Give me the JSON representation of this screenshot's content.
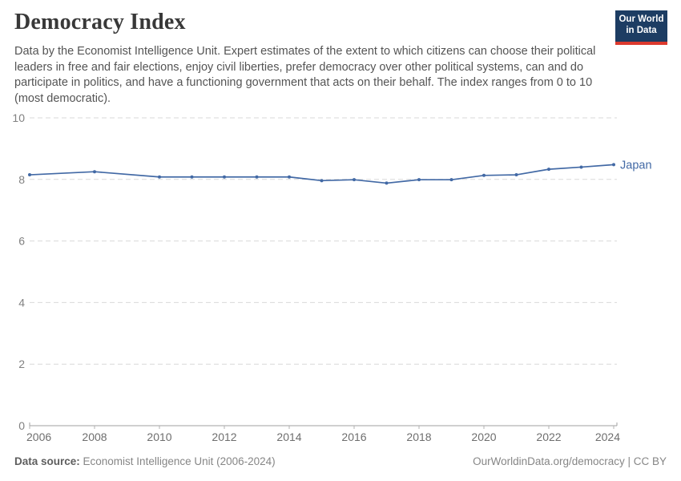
{
  "header": {
    "title": "Democracy Index",
    "subtitle": "Data by the Economist Intelligence Unit. Expert estimates of the extent to which citizens can choose their political leaders in free and fair elections, enjoy civil liberties, prefer democracy over other political systems, can and do participate in politics, and have a functioning government that acts on their behalf. The index ranges from 0 to 10 (most democratic)."
  },
  "logo": {
    "line1": "Our World",
    "line2": "in Data",
    "bg_color": "#1d3d63",
    "accent_color": "#dc3a2e"
  },
  "chart_data": {
    "type": "line",
    "title": "Democracy Index",
    "xlabel": "",
    "ylabel": "",
    "xlim": [
      2006,
      2024
    ],
    "ylim": [
      0,
      10
    ],
    "x_ticks": [
      2006,
      2008,
      2010,
      2012,
      2014,
      2016,
      2018,
      2020,
      2022,
      2024
    ],
    "y_ticks": [
      0,
      2,
      4,
      6,
      8,
      10
    ],
    "grid": "horizontal-dashed",
    "legend": "series-end-label",
    "series": [
      {
        "name": "Japan",
        "color": "#4269a5",
        "points": [
          [
            2006,
            8.15
          ],
          [
            2008,
            8.25
          ],
          [
            2010,
            8.08
          ],
          [
            2011,
            8.08
          ],
          [
            2012,
            8.08
          ],
          [
            2013,
            8.08
          ],
          [
            2014,
            8.08
          ],
          [
            2015,
            7.96
          ],
          [
            2016,
            7.99
          ],
          [
            2017,
            7.88
          ],
          [
            2018,
            7.99
          ],
          [
            2019,
            7.99
          ],
          [
            2020,
            8.13
          ],
          [
            2021,
            8.15
          ],
          [
            2022,
            8.33
          ],
          [
            2023,
            8.4
          ],
          [
            2024,
            8.48
          ]
        ]
      }
    ]
  },
  "footer": {
    "source_label": "Data source:",
    "source_text": " Economist Intelligence Unit (2006-2024)",
    "rights_text": "OurWorldinData.org/democracy | CC BY"
  }
}
